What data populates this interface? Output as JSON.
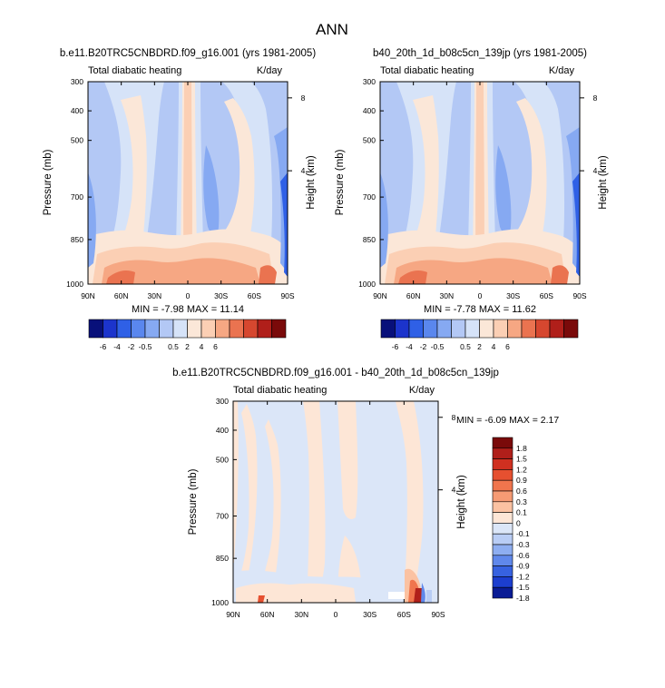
{
  "page": {
    "title": "ANN"
  },
  "chart_data": [
    {
      "type": "heatmap",
      "title": "b.e11.B20TRC5CNBDRD.f09_g16.001 (yrs 1981-2005)",
      "left_subtitle": "Total diabatic heating",
      "right_subtitle": "K/day",
      "ylabel": "Pressure (mb)",
      "y2label": "Height (km)",
      "x_ticks": [
        "90N",
        "60N",
        "30N",
        "0",
        "30S",
        "60S",
        "90S"
      ],
      "y_ticks": [
        "300",
        "400",
        "500",
        "700",
        "850",
        "1000"
      ],
      "y2_ticks": [
        "8",
        "4"
      ],
      "stats": "MIN =  -7.98   MAX =  11.14",
      "colorbar_orientation": "horizontal",
      "colorbar_labels": [
        "-6",
        "-4",
        "-2",
        "-0.5",
        "0.5",
        "2",
        "4",
        "6"
      ]
    },
    {
      "type": "heatmap",
      "title": "b40_20th_1d_b08c5cn_139jp (yrs 1981-2005)",
      "left_subtitle": "Total diabatic heating",
      "right_subtitle": "K/day",
      "ylabel": "Pressure (mb)",
      "y2label": "Height (km)",
      "x_ticks": [
        "90N",
        "60N",
        "30N",
        "0",
        "30S",
        "60S",
        "90S"
      ],
      "y_ticks": [
        "300",
        "400",
        "500",
        "700",
        "850",
        "1000"
      ],
      "y2_ticks": [
        "8",
        "4"
      ],
      "stats": "MIN =  -7.78   MAX =  11.62",
      "colorbar_orientation": "horizontal",
      "colorbar_labels": [
        "-6",
        "-4",
        "-2",
        "-0.5",
        "0.5",
        "2",
        "4",
        "6"
      ]
    },
    {
      "type": "heatmap",
      "title": "b.e11.B20TRC5CNBDRD.f09_g16.001 - b40_20th_1d_b08c5cn_139jp",
      "left_subtitle": "Total diabatic heating",
      "right_subtitle": "K/day",
      "ylabel": "Pressure (mb)",
      "y2label": "Height (km)",
      "x_ticks": [
        "90N",
        "60N",
        "30N",
        "0",
        "30S",
        "60S",
        "90S"
      ],
      "y_ticks": [
        "300",
        "400",
        "500",
        "700",
        "850",
        "1000"
      ],
      "y2_ticks": [
        "8",
        "4"
      ],
      "stats": "MIN =  -6.09   MAX =  2.17",
      "colorbar_orientation": "vertical",
      "colorbar_labels": [
        "1.8",
        "1.5",
        "1.2",
        "0.9",
        "0.6",
        "0.3",
        "0.1",
        "0",
        "-0.1",
        "-0.3",
        "-0.6",
        "-0.9",
        "-1.2",
        "-1.5",
        "-1.8"
      ]
    }
  ],
  "colors": {
    "abs_colorbar": [
      "#08107a",
      "#1c34cc",
      "#2f60e6",
      "#5a87ee",
      "#86a9f2",
      "#b3c8f5",
      "#d6e3f8",
      "#fbe7d8",
      "#fbcfb4",
      "#f6a783",
      "#ea7350",
      "#d6472f",
      "#b01f1a",
      "#7a0a0a"
    ],
    "diff_colorbar": [
      "#7a0a0a",
      "#b01f1a",
      "#d03020",
      "#e65030",
      "#f0754d",
      "#f69b74",
      "#fbc2a2",
      "#fde6d6",
      "#dbe6f8",
      "#b9cdf5",
      "#8eaef1",
      "#6088eb",
      "#3762e0",
      "#1c3ecf",
      "#0a1c95"
    ]
  }
}
